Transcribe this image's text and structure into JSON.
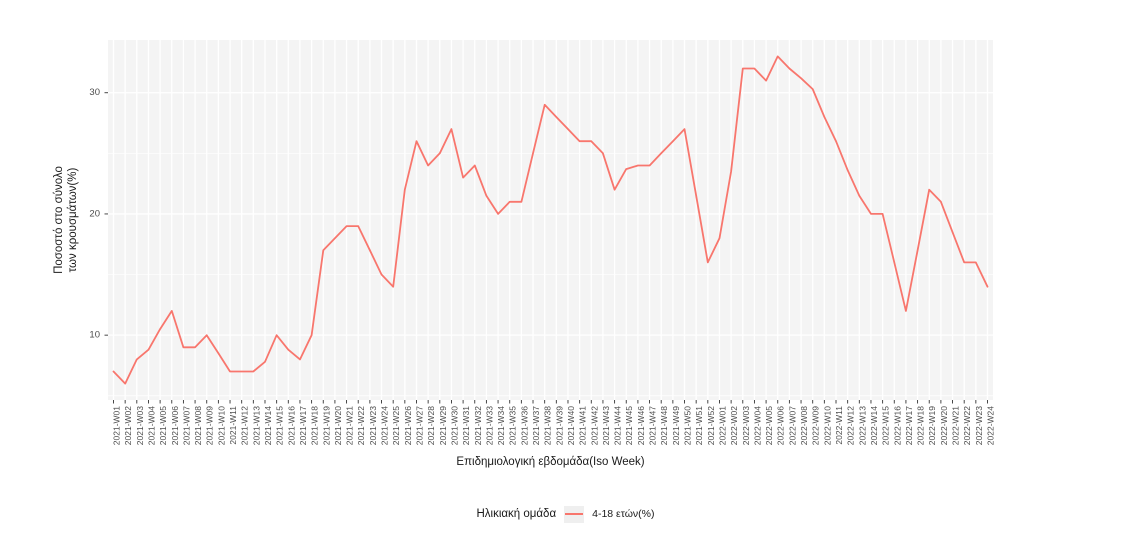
{
  "chart_data": {
    "type": "line",
    "title": "",
    "xlabel": "Επιδημιολογική εβδομάδα(Iso Week)",
    "ylabel": "Ποσοστό στο σύνολο των κρουσμάτων(%)",
    "ylabel_lines": [
      "Ποσοστό στο σύνολο",
      "των κρουσμάτων(%)"
    ],
    "legend_title": "Ηλικιακή ομάδα",
    "legend_position": "bottom",
    "grid": true,
    "panel_bg": "#F4F4F4",
    "grid_color": "#FFFFFF",
    "tick_label_color": "#4D4D4D",
    "yticks": [
      10,
      20,
      30
    ],
    "yticks_minor": [
      5,
      15,
      25
    ],
    "ylim": [
      4.65,
      34.35
    ],
    "x": [
      "2021-W01",
      "2021-W02",
      "2021-W03",
      "2021-W04",
      "2021-W05",
      "2021-W06",
      "2021-W07",
      "2021-W08",
      "2021-W09",
      "2021-W10",
      "2021-W11",
      "2021-W12",
      "2021-W13",
      "2021-W14",
      "2021-W15",
      "2021-W16",
      "2021-W17",
      "2021-W18",
      "2021-W19",
      "2021-W20",
      "2021-W21",
      "2021-W22",
      "2021-W23",
      "2021-W24",
      "2021-W25",
      "2021-W26",
      "2021-W27",
      "2021-W28",
      "2021-W29",
      "2021-W30",
      "2021-W31",
      "2021-W32",
      "2021-W33",
      "2021-W34",
      "2021-W35",
      "2021-W36",
      "2021-W37",
      "2021-W38",
      "2021-W39",
      "2021-W40",
      "2021-W41",
      "2021-W42",
      "2021-W43",
      "2021-W44",
      "2021-W45",
      "2021-W46",
      "2021-W47",
      "2021-W48",
      "2021-W49",
      "2021-W50",
      "2021-W51",
      "2021-W52",
      "2022-W01",
      "2022-W02",
      "2022-W03",
      "2022-W04",
      "2022-W05",
      "2022-W06",
      "2022-W07",
      "2022-W08",
      "2022-W09",
      "2022-W10",
      "2022-W11",
      "2022-W12",
      "2022-W13",
      "2022-W14",
      "2022-W15",
      "2022-W16",
      "2022-W17",
      "2022-W18",
      "2022-W19",
      "2022-W20",
      "2022-W21",
      "2022-W22",
      "2022-W23",
      "2022-W24"
    ],
    "series": [
      {
        "name": "4-18 ετών(%)",
        "color": "#F8766D",
        "values": [
          7,
          6,
          8,
          8.8,
          10.5,
          12,
          9,
          9,
          10,
          8.5,
          7,
          7,
          7,
          7.8,
          10,
          8.8,
          8,
          10,
          17,
          18,
          19,
          19,
          17,
          15,
          14,
          22,
          26,
          24,
          25,
          27,
          23,
          24,
          21.5,
          20,
          21,
          21,
          25,
          29,
          28,
          27,
          26,
          26,
          25,
          22,
          23.7,
          24,
          24,
          25,
          26,
          27,
          21.5,
          16,
          18,
          23.5,
          32,
          32,
          31,
          33,
          32,
          31.2,
          30.3,
          28,
          26,
          23.6,
          21.5,
          20,
          20,
          16,
          12,
          17,
          22,
          21,
          18.5,
          16,
          16,
          14
        ]
      }
    ]
  }
}
